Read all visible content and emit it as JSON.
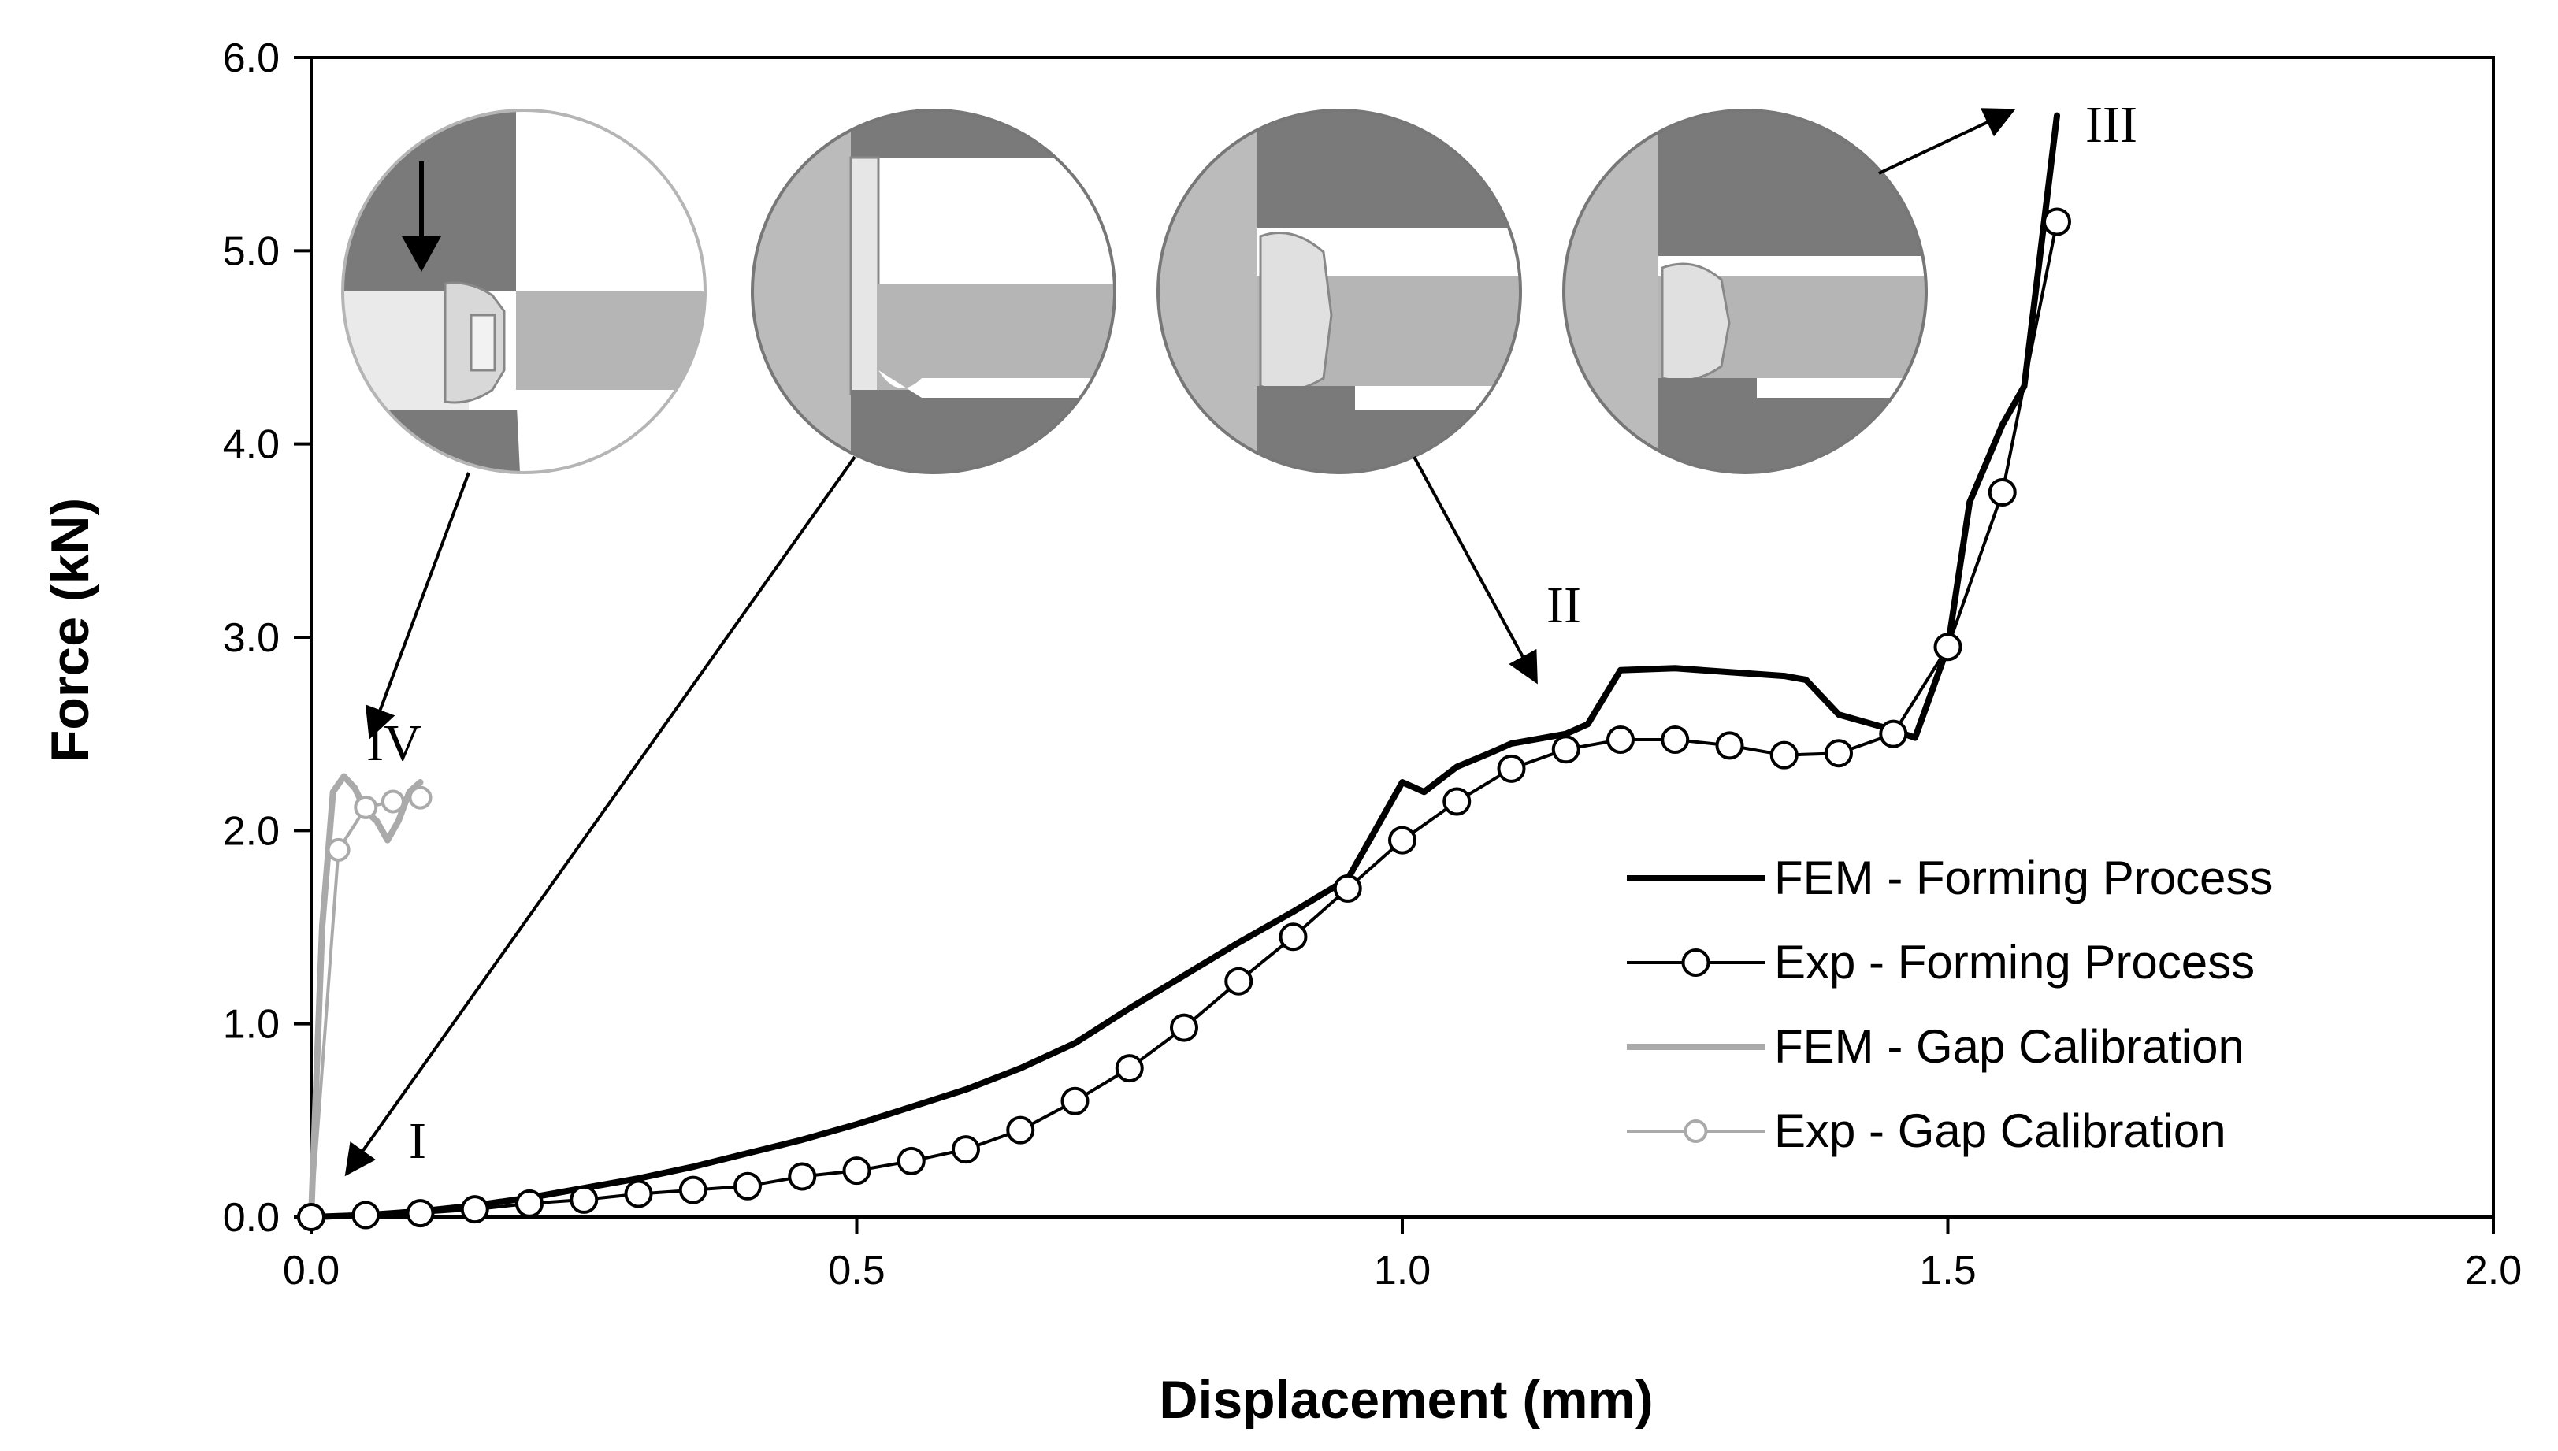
{
  "chart_data": {
    "type": "line",
    "title": "",
    "xlabel": "Displacement (mm)",
    "ylabel": "Force (kN)",
    "xlim": [
      0,
      2
    ],
    "ylim": [
      0,
      6
    ],
    "xticks": [
      "0.0",
      "0.5",
      "1.0",
      "1.5",
      "2.0"
    ],
    "yticks": [
      "0.0",
      "1.0",
      "2.0",
      "3.0",
      "4.0",
      "5.0",
      "6.0"
    ],
    "grid": false,
    "legend_position": "bottom-right",
    "series": [
      {
        "name": "FEM - Forming Process",
        "color": "#000000",
        "style": "line",
        "x": [
          0,
          0.05,
          0.1,
          0.15,
          0.2,
          0.25,
          0.3,
          0.35,
          0.4,
          0.45,
          0.5,
          0.55,
          0.6,
          0.65,
          0.7,
          0.75,
          0.8,
          0.85,
          0.9,
          0.95,
          0.97,
          1.0,
          1.02,
          1.05,
          1.08,
          1.1,
          1.15,
          1.17,
          1.2,
          1.25,
          1.3,
          1.35,
          1.37,
          1.4,
          1.45,
          1.47,
          1.5,
          1.52,
          1.55,
          1.57,
          1.6
        ],
        "y": [
          0,
          0.01,
          0.03,
          0.06,
          0.1,
          0.15,
          0.2,
          0.26,
          0.33,
          0.4,
          0.48,
          0.57,
          0.66,
          0.77,
          0.9,
          1.08,
          1.25,
          1.42,
          1.58,
          1.75,
          1.95,
          2.25,
          2.2,
          2.33,
          2.4,
          2.45,
          2.5,
          2.55,
          2.83,
          2.84,
          2.82,
          2.8,
          2.78,
          2.6,
          2.52,
          2.48,
          2.95,
          3.7,
          4.1,
          4.3,
          5.7
        ]
      },
      {
        "name": "Exp - Forming Process",
        "color": "#000000",
        "style": "line-markers",
        "x": [
          0,
          0.05,
          0.1,
          0.15,
          0.2,
          0.25,
          0.3,
          0.35,
          0.4,
          0.45,
          0.5,
          0.55,
          0.6,
          0.65,
          0.7,
          0.75,
          0.8,
          0.85,
          0.9,
          0.95,
          1.0,
          1.05,
          1.1,
          1.15,
          1.2,
          1.25,
          1.3,
          1.35,
          1.4,
          1.45,
          1.5,
          1.55,
          1.6
        ],
        "y": [
          0,
          0.01,
          0.02,
          0.04,
          0.07,
          0.09,
          0.12,
          0.14,
          0.16,
          0.21,
          0.24,
          0.29,
          0.35,
          0.45,
          0.6,
          0.77,
          0.98,
          1.22,
          1.45,
          1.7,
          1.95,
          2.15,
          2.32,
          2.42,
          2.47,
          2.47,
          2.44,
          2.39,
          2.4,
          2.5,
          2.95,
          3.75,
          5.15
        ]
      },
      {
        "name": "FEM - Gap Calibration",
        "color": "#aaaaaa",
        "style": "line",
        "x": [
          0,
          0.01,
          0.02,
          0.03,
          0.04,
          0.05,
          0.06,
          0.07,
          0.08,
          0.09,
          0.1
        ],
        "y": [
          0,
          1.5,
          2.2,
          2.28,
          2.22,
          2.1,
          2.05,
          1.95,
          2.05,
          2.2,
          2.25
        ]
      },
      {
        "name": "Exp - Gap Calibration",
        "color": "#aaaaaa",
        "style": "line-markers",
        "x": [
          0,
          0.025,
          0.05,
          0.075,
          0.1
        ],
        "y": [
          0,
          1.9,
          2.12,
          2.15,
          2.17
        ]
      }
    ],
    "annotations": [
      "I",
      "II",
      "III",
      "IV"
    ]
  }
}
